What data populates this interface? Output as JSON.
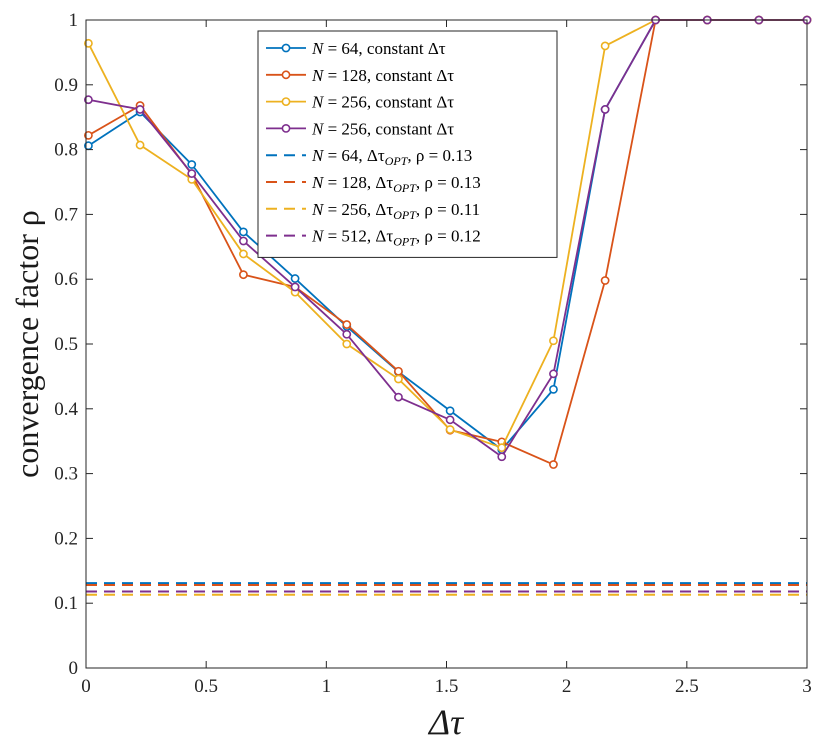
{
  "chart_data": {
    "type": "line",
    "title": "",
    "xlabel": "Δτ",
    "ylabel": "convergence factor ρ",
    "xlim": [
      0,
      3
    ],
    "ylim": [
      0,
      1
    ],
    "xticks": [
      0,
      0.5,
      1,
      1.5,
      2,
      2.5,
      3
    ],
    "xtick_labels": [
      "0",
      "0.5",
      "1",
      "1.5",
      "2",
      "2.5",
      "3"
    ],
    "yticks": [
      0,
      0.1,
      0.2,
      0.3,
      0.4,
      0.5,
      0.6,
      0.7,
      0.8,
      0.9,
      1
    ],
    "ytick_labels": [
      "0",
      "0.1",
      "0.2",
      "0.3",
      "0.4",
      "0.5",
      "0.6",
      "0.7",
      "0.8",
      "0.9",
      "1"
    ],
    "grid": false,
    "legend_position": "top-center",
    "x": [
      0.01,
      0.225,
      0.44,
      0.655,
      0.87,
      1.085,
      1.3,
      1.515,
      1.73,
      1.945,
      2.16,
      2.37,
      2.585,
      2.8,
      3.0
    ],
    "series": [
      {
        "name": "N = 64, constant Δτ",
        "legend": {
          "var": "N",
          "rest": " = 64, constant Δτ"
        },
        "color": "#0072BD",
        "style": "solid-marker",
        "values": [
          0.806,
          0.858,
          0.777,
          0.673,
          0.601,
          0.527,
          0.457,
          0.397,
          0.337,
          0.43,
          0.862,
          1.0,
          1.0,
          1.0,
          1.0
        ]
      },
      {
        "name": "N = 128, constant Δτ",
        "legend": {
          "var": "N",
          "rest": " = 128, constant Δτ"
        },
        "color": "#D95319",
        "style": "solid-marker",
        "values": [
          0.822,
          0.868,
          0.762,
          0.607,
          0.588,
          0.53,
          0.458,
          0.367,
          0.349,
          0.314,
          0.598,
          1.0,
          1.0,
          1.0,
          1.0
        ]
      },
      {
        "name": "N = 256, constant Δτ",
        "legend": {
          "var": "N",
          "rest": " = 256, constant Δτ"
        },
        "color": "#EDB120",
        "style": "solid-marker",
        "values": [
          0.964,
          0.807,
          0.754,
          0.639,
          0.58,
          0.5,
          0.446,
          0.368,
          0.34,
          0.505,
          0.96,
          1.0,
          1.0,
          1.0,
          1.0
        ]
      },
      {
        "name": "N = 256, constant Δτ",
        "legend": {
          "var": "N",
          "rest": " = 256, constant Δτ"
        },
        "color": "#7E2F8E",
        "style": "solid-marker",
        "values": [
          0.877,
          0.862,
          0.763,
          0.659,
          0.588,
          0.515,
          0.418,
          0.383,
          0.326,
          0.454,
          0.862,
          1.0,
          1.0,
          1.0,
          1.0
        ]
      },
      {
        "name": "N = 64, Δτ_OPT, ρ = 0.13",
        "legend": {
          "var": "N",
          "rest": " = 64, Δτ",
          "sub": "OPT",
          "tail": ", ρ = 0.13"
        },
        "color": "#0072BD",
        "style": "dashed",
        "constant": 0.131
      },
      {
        "name": "N = 128, Δτ_OPT, ρ = 0.13",
        "legend": {
          "var": "N",
          "rest": " = 128, Δτ",
          "sub": "OPT",
          "tail": ", ρ = 0.13"
        },
        "color": "#D95319",
        "style": "dashed",
        "constant": 0.128
      },
      {
        "name": "N = 256, Δτ_OPT, ρ = 0.11",
        "legend": {
          "var": "N",
          "rest": " = 256, Δτ",
          "sub": "OPT",
          "tail": ", ρ = 0.11"
        },
        "color": "#EDB120",
        "style": "dashed",
        "constant": 0.113
      },
      {
        "name": "N = 512, Δτ_OPT, ρ = 0.12",
        "legend": {
          "var": "N",
          "rest": " = 512, Δτ",
          "sub": "OPT",
          "tail": ", ρ = 0.12"
        },
        "color": "#7E2F8E",
        "style": "dashed",
        "constant": 0.118
      }
    ]
  }
}
